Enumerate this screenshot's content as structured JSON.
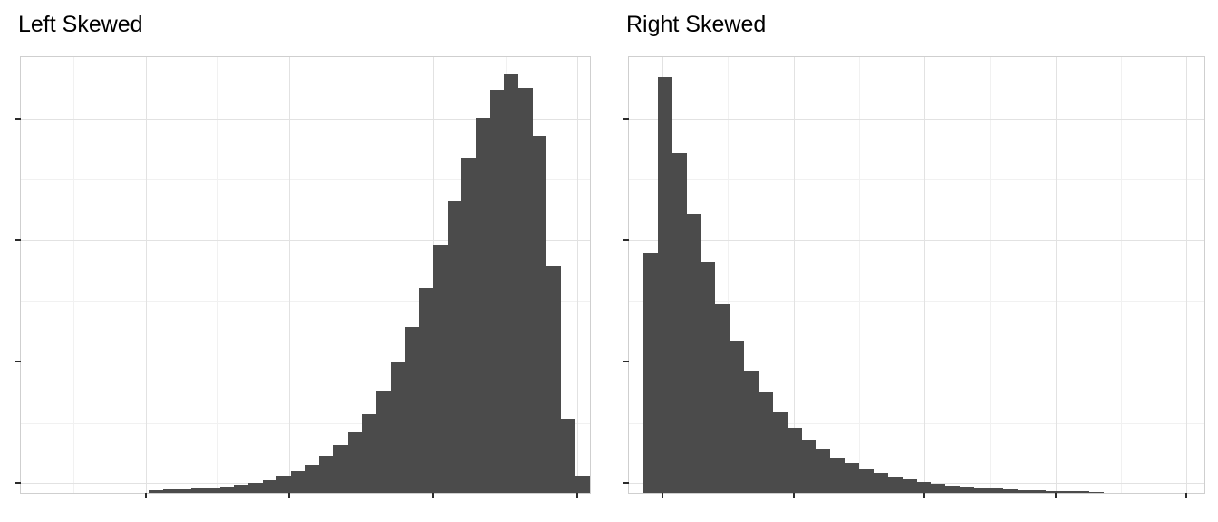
{
  "page": {
    "background": "#ffffff"
  },
  "panels": [
    {
      "title": "Left Skewed"
    },
    {
      "title": "Right Skewed"
    }
  ],
  "colors": {
    "bar": "#4b4b4b",
    "grid_major": "#e2e2e2",
    "grid_minor": "#f1f1f1",
    "panel_border": "#cfcfcf",
    "tick": "#2b2b2b",
    "title_text": "#000000"
  },
  "chart_data": [
    {
      "type": "bar",
      "subtype": "histogram",
      "title": "Left Skewed",
      "orientation": "vertical",
      "bar_color": "#4b4b4b",
      "n_bins": 40,
      "values_relative_frequency": [
        0,
        0,
        0,
        0,
        0,
        0,
        0,
        0,
        0,
        0.006,
        0.008,
        0.008,
        0.01,
        0.012,
        0.015,
        0.018,
        0.022,
        0.03,
        0.04,
        0.05,
        0.065,
        0.085,
        0.11,
        0.14,
        0.18,
        0.235,
        0.3,
        0.38,
        0.47,
        0.57,
        0.67,
        0.77,
        0.86,
        0.925,
        0.96,
        0.93,
        0.82,
        0.52,
        0.17,
        0.04
      ],
      "ylim": [
        0,
        1
      ],
      "xlabel": "",
      "ylabel": "",
      "axis_tick_labels": "none",
      "legend": "none",
      "grid": {
        "x_major": [
          0.219,
          0.472,
          0.725,
          0.978
        ],
        "x_minor": [
          0.093,
          0.346,
          0.599,
          0.852
        ],
        "y_major": [
          0.141,
          0.42,
          0.699,
          0.978
        ],
        "y_minor": [
          0.281,
          0.56,
          0.839
        ]
      },
      "description": "Unimodal histogram with a long tail to the left; peak near the right edge then a steep drop"
    },
    {
      "type": "bar",
      "subtype": "histogram",
      "title": "Right Skewed",
      "orientation": "vertical",
      "bar_color": "#4b4b4b",
      "n_bins": 40,
      "values_relative_frequency": [
        0,
        0.55,
        0.955,
        0.78,
        0.64,
        0.53,
        0.435,
        0.35,
        0.28,
        0.23,
        0.185,
        0.15,
        0.12,
        0.1,
        0.082,
        0.068,
        0.056,
        0.046,
        0.037,
        0.031,
        0.025,
        0.021,
        0.017,
        0.014,
        0.012,
        0.01,
        0.008,
        0.007,
        0.006,
        0.005,
        0.004,
        0.0035,
        0.003,
        0,
        0,
        0,
        0,
        0,
        0,
        0
      ],
      "ylim": [
        0,
        1
      ],
      "xlabel": "",
      "ylabel": "",
      "axis_tick_labels": "none",
      "legend": "none",
      "grid": {
        "x_major": [
          0.058,
          0.286,
          0.513,
          0.741,
          0.969
        ],
        "x_minor": [
          0.172,
          0.4,
          0.627,
          0.855
        ],
        "y_major": [
          0.141,
          0.42,
          0.699,
          0.978
        ],
        "y_minor": [
          0.281,
          0.56,
          0.839
        ]
      },
      "description": "Unimodal histogram with a long tail to the right; tall peak near the left edge then gradual decay"
    }
  ]
}
